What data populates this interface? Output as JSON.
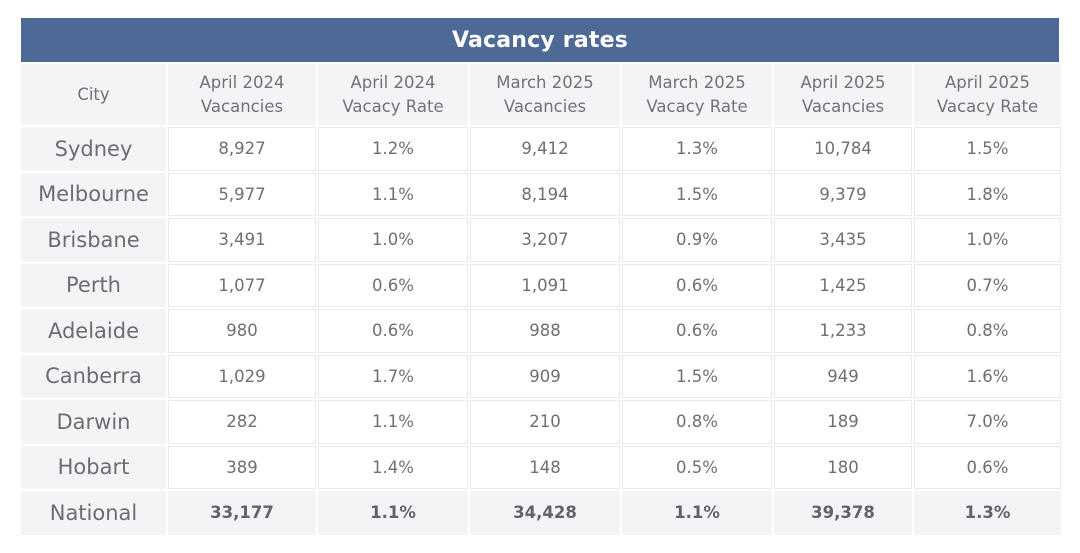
{
  "chart_data": {
    "type": "table",
    "title": "Vacancy rates",
    "columns": [
      "City",
      "April 2024\nVacancies",
      "April 2024\nVacacy Rate",
      "March 2025\nVacancies",
      "March 2025\nVacacy Rate",
      "April 2025\nVacancies",
      "April 2025\nVacacy Rate"
    ],
    "rows": [
      {
        "city": "Sydney",
        "values": [
          "8,927",
          "1.2%",
          "9,412",
          "1.3%",
          "10,784",
          "1.5%"
        ]
      },
      {
        "city": "Melbourne",
        "values": [
          "5,977",
          "1.1%",
          "8,194",
          "1.5%",
          "9,379",
          "1.8%"
        ]
      },
      {
        "city": "Brisbane",
        "values": [
          "3,491",
          "1.0%",
          "3,207",
          "0.9%",
          "3,435",
          "1.0%"
        ]
      },
      {
        "city": "Perth",
        "values": [
          "1,077",
          "0.6%",
          "1,091",
          "0.6%",
          "1,425",
          "0.7%"
        ]
      },
      {
        "city": "Adelaide",
        "values": [
          "980",
          "0.6%",
          "988",
          "0.6%",
          "1,233",
          "0.8%"
        ]
      },
      {
        "city": "Canberra",
        "values": [
          "1,029",
          "1.7%",
          "909",
          "1.5%",
          "949",
          "1.6%"
        ]
      },
      {
        "city": "Darwin",
        "values": [
          "282",
          "1.1%",
          "210",
          "0.8%",
          "189",
          "7.0%"
        ]
      },
      {
        "city": "Hobart",
        "values": [
          "389",
          "1.4%",
          "148",
          "0.5%",
          "180",
          "0.6%"
        ]
      }
    ],
    "total": {
      "city": "National",
      "values": [
        "33,177",
        "1.1%",
        "34,428",
        "1.1%",
        "39,378",
        "1.3%"
      ]
    }
  },
  "colors": {
    "title_bar": "#4d6a96",
    "header_bg": "#f3f4f6",
    "text": "#6b6f75"
  }
}
